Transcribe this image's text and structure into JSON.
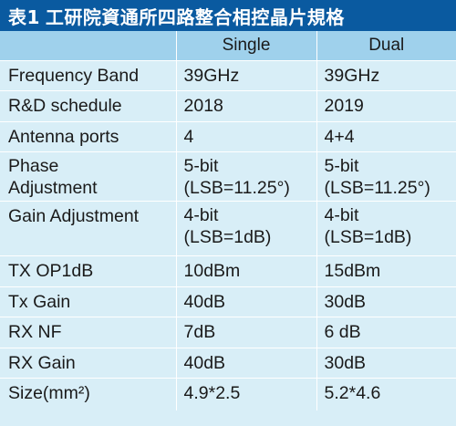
{
  "title": {
    "label": "表1",
    "text": "工研院資通所四路整合相控晶片規格"
  },
  "table": {
    "headers": [
      "",
      "Single",
      "Dual"
    ],
    "rows": [
      {
        "param": [
          "Frequency Band"
        ],
        "single": [
          "39GHz"
        ],
        "dual": [
          "39GHz"
        ]
      },
      {
        "param": [
          "R&D schedule"
        ],
        "single": [
          "2018"
        ],
        "dual": [
          "2019"
        ]
      },
      {
        "param": [
          "Antenna ports"
        ],
        "single": [
          "4"
        ],
        "dual": [
          "4+4"
        ]
      },
      {
        "param": [
          "Phase",
          "Adjustment"
        ],
        "single": [
          "5-bit",
          "(LSB=11.25°)"
        ],
        "dual": [
          "5-bit",
          "(LSB=11.25°)"
        ]
      },
      {
        "param": [
          "Gain Adjustment"
        ],
        "single": [
          "4-bit",
          "(LSB=1dB)"
        ],
        "dual": [
          "4-bit",
          "(LSB=1dB)"
        ]
      },
      {
        "param": [
          "TX OP1dB"
        ],
        "single": [
          "10dBm"
        ],
        "dual": [
          "15dBm"
        ]
      },
      {
        "param": [
          "Tx Gain"
        ],
        "single": [
          "40dB"
        ],
        "dual": [
          "30dB"
        ]
      },
      {
        "param": [
          "RX NF"
        ],
        "single": [
          "7dB"
        ],
        "dual": [
          "6 dB"
        ]
      },
      {
        "param": [
          "RX Gain"
        ],
        "single": [
          "40dB"
        ],
        "dual": [
          "30dB"
        ]
      },
      {
        "param": [
          "Size(mm²)"
        ],
        "single": [
          "4.9*2.5"
        ],
        "dual": [
          "5.2*4.6"
        ]
      }
    ]
  },
  "colors": {
    "title_bg": "#0a5aa0",
    "header_bg": "#9fd1ec",
    "body_bg": "#d8eef7"
  }
}
